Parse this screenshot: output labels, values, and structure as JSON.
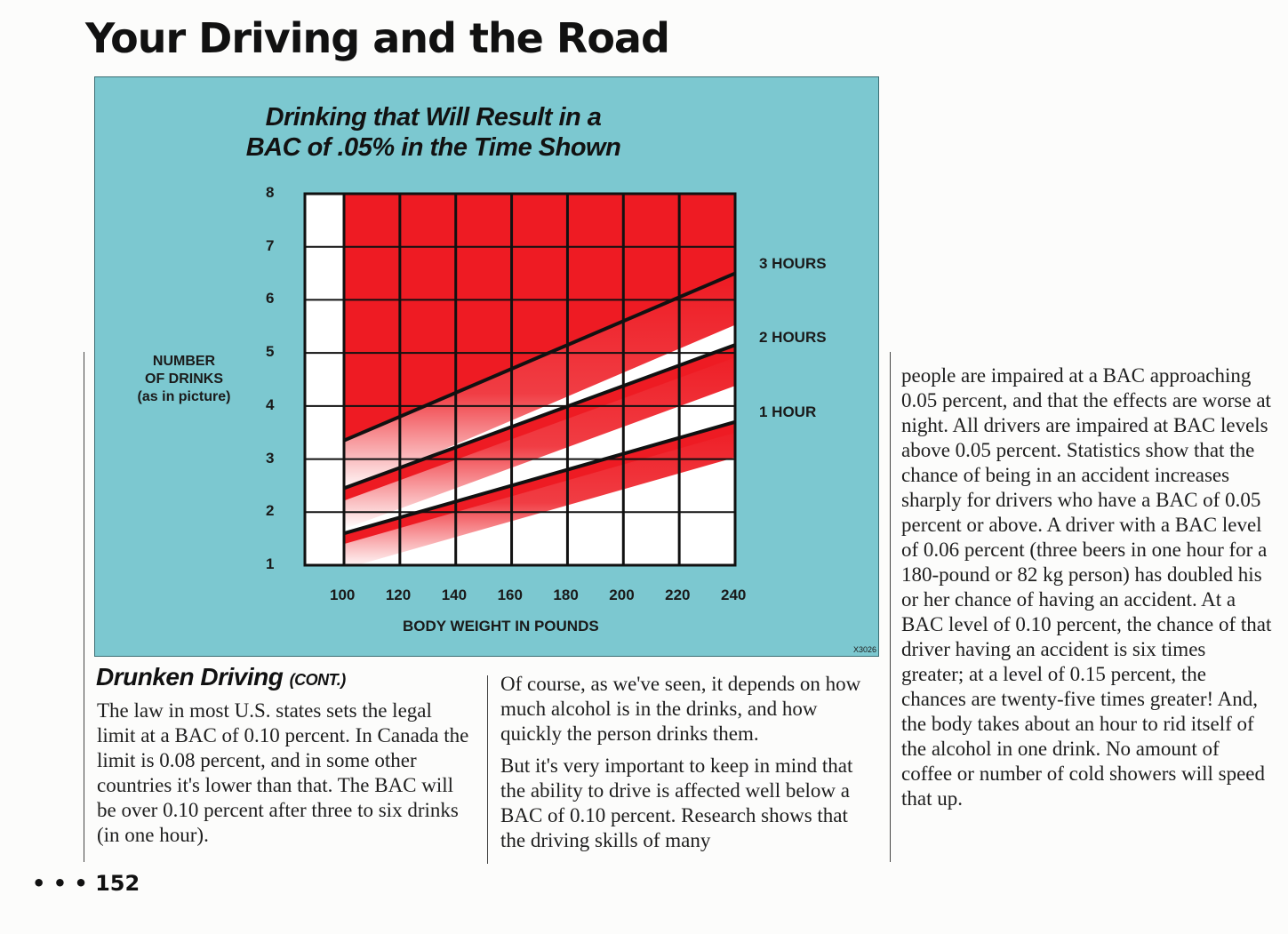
{
  "page": {
    "title": "Your Driving and the Road",
    "page_number": "• • • 152"
  },
  "chart_data": {
    "type": "area",
    "title": [
      "Drinking that Will Result in a",
      "BAC of .05% in the Time Shown"
    ],
    "xlabel": "BODY WEIGHT IN POUNDS",
    "ylabel": [
      "NUMBER",
      "OF DRINKS",
      "(as in picture)"
    ],
    "x_ticks": [
      100,
      120,
      140,
      160,
      180,
      200,
      220,
      240
    ],
    "y_ticks": [
      1,
      2,
      3,
      4,
      5,
      6,
      7,
      8
    ],
    "xlim": [
      86,
      240
    ],
    "ylim": [
      1,
      8
    ],
    "series": [
      {
        "name": "3 HOURS",
        "x": [
          100,
          240
        ],
        "y": [
          3.35,
          6.5
        ]
      },
      {
        "name": "2 HOURS",
        "x": [
          100,
          240
        ],
        "y": [
          2.45,
          5.15
        ]
      },
      {
        "name": "1 HOUR",
        "x": [
          100,
          240
        ],
        "y": [
          1.6,
          3.7
        ]
      }
    ],
    "figure_code": "X3026",
    "colors": {
      "background": "#7cc8d0",
      "fill": "#ee1b23",
      "cell": "#ffffff",
      "grid": "#111111"
    }
  },
  "section": {
    "heading": "Drunken Driving",
    "heading_suffix": "(CONT.)"
  },
  "columns": [
    [
      "The law in most U.S. states sets the legal limit at a BAC of 0.10 percent. In Canada the limit is 0.08 percent, and in some other countries it's lower than that. The BAC will be over 0.10 percent after three to six drinks (in one hour)."
    ],
    [
      "Of course, as we've seen, it depends on how much alcohol is in the drinks, and how quickly the person drinks them.",
      "But it's very important to keep in mind that the ability to drive is affected well below a BAC of 0.10 percent. Research shows that the driving skills of many"
    ],
    [
      "people are impaired at a BAC approaching 0.05 percent, and that the effects are worse at night. All drivers are impaired at BAC levels above 0.05 percent. Statistics show that the chance of being in an accident increases sharply for drivers who have a BAC of 0.05 percent or above. A driver with a BAC level of 0.06 percent (three beers in one hour for a 180-pound or 82 kg person) has doubled his or her chance of having an accident. At a BAC level of 0.10 percent, the chance of that driver having an accident is six times greater; at a level of 0.15 percent, the chances are twenty-five times greater! And, the body takes about an hour to rid itself of the alcohol in one drink. No amount of coffee or number of cold showers will speed that up."
    ]
  ]
}
